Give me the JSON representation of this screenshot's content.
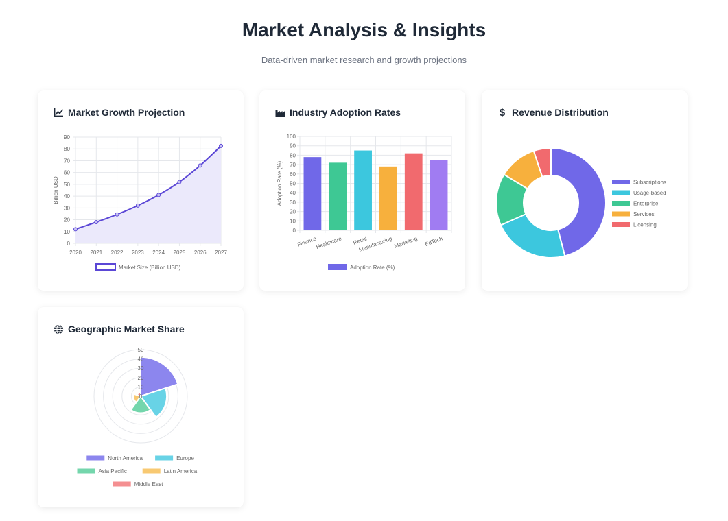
{
  "header": {
    "title": "Market Analysis & Insights",
    "subtitle": "Data-driven market research and growth projections"
  },
  "cards": {
    "growth": {
      "title": "Market Growth Projection",
      "icon": "line-chart-icon"
    },
    "adoption": {
      "title": "Industry Adoption Rates",
      "icon": "factory-icon"
    },
    "revenue": {
      "title": "Revenue Distribution",
      "icon": "dollar-icon"
    },
    "geo": {
      "title": "Geographic Market Share",
      "icon": "globe-icon"
    }
  },
  "chart_data": [
    {
      "id": "growth",
      "type": "area",
      "x": [
        "2020",
        "2021",
        "2022",
        "2023",
        "2024",
        "2025",
        "2026",
        "2027"
      ],
      "series": [
        {
          "name": "Market Size (Billion USD)",
          "values": [
            12,
            18,
            24.5,
            32,
            41,
            52,
            66,
            82.5
          ],
          "color": "#5b47d6",
          "fill": "#ebe9fb"
        }
      ],
      "ylabel": "Billion USD",
      "xlabel": "",
      "ylim": [
        0,
        90
      ],
      "yticks": [
        "0",
        "10",
        "20",
        "30",
        "40",
        "50",
        "60",
        "70",
        "80",
        "90"
      ],
      "grid": true,
      "legend": "bottom"
    },
    {
      "id": "adoption",
      "type": "bar",
      "categories": [
        "Finance",
        "Healthcare",
        "Retail",
        "Manufacturing",
        "Marketing",
        "EdTech"
      ],
      "series": [
        {
          "name": "Adoption Rate (%)",
          "values": [
            78,
            72,
            85,
            68,
            82,
            75
          ]
        }
      ],
      "colors": [
        "#7068e8",
        "#3ec894",
        "#3cc7de",
        "#f7b03d",
        "#f16a6e",
        "#a07cf2"
      ],
      "legend_color": "#7068e8",
      "ylabel": "Adoption Rate (%)",
      "xlabel": "",
      "ylim": [
        0,
        100
      ],
      "yticks": [
        "0",
        "10",
        "20",
        "30",
        "40",
        "50",
        "60",
        "70",
        "80",
        "90",
        "100"
      ],
      "grid": true,
      "legend": "bottom"
    },
    {
      "id": "revenue",
      "type": "pie",
      "donut": true,
      "labels": [
        "Subscriptions",
        "Usage-based",
        "Enterprise",
        "Services",
        "Licensing"
      ],
      "values": [
        45,
        22,
        15,
        11,
        5
      ],
      "colors": [
        "#7068e8",
        "#3cc7de",
        "#3ec894",
        "#f7b03d",
        "#f16a6e"
      ],
      "legend": "right"
    },
    {
      "id": "geo",
      "type": "polar-area",
      "labels": [
        "North America",
        "Europe",
        "Asia Pacific",
        "Latin America",
        "Middle East"
      ],
      "values": [
        42,
        28,
        18,
        8,
        4
      ],
      "colors": [
        "#8c86ee",
        "#68d3e6",
        "#74d6ac",
        "#f8c972",
        "#f48f91"
      ],
      "rlim": [
        0,
        50
      ],
      "rticks": [
        "0",
        "10",
        "20",
        "30",
        "40",
        "50"
      ],
      "legend": "bottom"
    }
  ]
}
